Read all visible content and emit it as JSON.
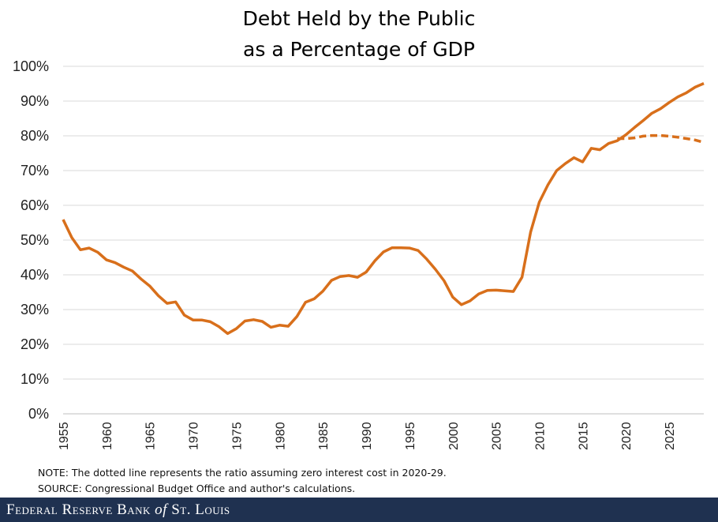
{
  "chart_data": {
    "type": "line",
    "title": [
      "Debt Held by the Public",
      "as a Percentage of GDP"
    ],
    "xlabel": "",
    "ylabel": "",
    "xlim": [
      1955,
      2029
    ],
    "ylim": [
      0,
      100
    ],
    "y_ticks": [
      "0%",
      "10%",
      "20%",
      "30%",
      "40%",
      "50%",
      "60%",
      "70%",
      "80%",
      "90%",
      "100%"
    ],
    "y_tick_values": [
      0,
      10,
      20,
      30,
      40,
      50,
      60,
      70,
      80,
      90,
      100
    ],
    "x_ticks": [
      "1955",
      "1960",
      "1965",
      "1970",
      "1975",
      "1980",
      "1985",
      "1990",
      "1995",
      "2000",
      "2005",
      "2010",
      "2015",
      "2020",
      "2025"
    ],
    "x_tick_values": [
      1955,
      1960,
      1965,
      1970,
      1975,
      1980,
      1985,
      1990,
      1995,
      2000,
      2005,
      2010,
      2015,
      2020,
      2025
    ],
    "x_tick_rotation": "vertical",
    "grid": "horizontal",
    "color": "#d86f1b",
    "series": [
      {
        "style": "solid",
        "x": [
          1955,
          1956,
          1957,
          1958,
          1959,
          1960,
          1961,
          1962,
          1963,
          1964,
          1965,
          1966,
          1967,
          1968,
          1969,
          1970,
          1971,
          1972,
          1973,
          1974,
          1975,
          1976,
          1977,
          1978,
          1979,
          1980,
          1981,
          1982,
          1983,
          1984,
          1985,
          1986,
          1987,
          1988,
          1989,
          1990,
          1991,
          1992,
          1993,
          1994,
          1995,
          1996,
          1997,
          1998,
          1999,
          2000,
          2001,
          2002,
          2003,
          2004,
          2005,
          2006,
          2007,
          2008,
          2009,
          2010,
          2011,
          2012,
          2013,
          2014,
          2015,
          2016,
          2017,
          2018,
          2019,
          2020,
          2021,
          2022,
          2023,
          2024,
          2025,
          2026,
          2027,
          2028,
          2029
        ],
        "y": [
          55.9,
          50.7,
          47.2,
          47.7,
          46.5,
          44.3,
          43.5,
          42.2,
          41.1,
          38.8,
          36.8,
          34.0,
          31.8,
          32.2,
          28.4,
          27.0,
          27.0,
          26.5,
          25.1,
          23.1,
          24.5,
          26.7,
          27.1,
          26.6,
          24.9,
          25.5,
          25.2,
          28.0,
          32.1,
          33.1,
          35.3,
          38.4,
          39.5,
          39.8,
          39.3,
          40.8,
          44.0,
          46.6,
          47.8,
          47.8,
          47.7,
          47.0,
          44.5,
          41.6,
          38.3,
          33.6,
          31.4,
          32.5,
          34.5,
          35.5,
          35.6,
          35.4,
          35.2,
          39.3,
          52.3,
          60.9,
          65.9,
          70.0,
          72.0,
          73.7,
          72.5,
          76.4,
          76.0,
          77.8,
          78.6,
          80.3,
          82.4,
          84.4,
          86.5,
          87.8,
          89.6,
          91.2,
          92.4,
          94.0,
          95.1
        ]
      },
      {
        "style": "dashed",
        "x": [
          2019,
          2020,
          2021,
          2022,
          2023,
          2024,
          2025,
          2026,
          2027,
          2028,
          2029
        ],
        "y": [
          79.2,
          79.2,
          79.4,
          79.9,
          80.1,
          80.1,
          79.9,
          79.6,
          79.2,
          78.8,
          78.1
        ]
      }
    ],
    "annotations": [
      "NOTE: The dotted line represents the ratio assuming zero interest cost in 2020-29.",
      "SOURCE: Congressional Budget Office and author's calculations."
    ]
  },
  "footer": {
    "brand_prefix": "Federal Reserve Bank",
    "brand_of": "of",
    "brand_suffix": "St. Louis"
  }
}
